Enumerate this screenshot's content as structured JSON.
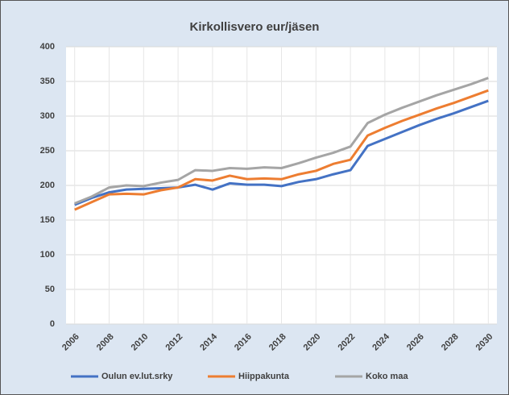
{
  "chart_data": {
    "type": "line",
    "title": "Kirkollisvero eur/jäsen",
    "x": [
      2006,
      2007,
      2008,
      2009,
      2010,
      2011,
      2012,
      2013,
      2014,
      2015,
      2016,
      2017,
      2018,
      2019,
      2020,
      2021,
      2022,
      2023,
      2024,
      2025,
      2026,
      2027,
      2028,
      2029,
      2030
    ],
    "series": [
      {
        "name": "Oulun ev.lut.srky",
        "color": "#4472c4",
        "values": [
          172,
          182,
          190,
          194,
          195,
          196,
          197,
          201,
          194,
          203,
          201,
          201,
          199,
          205,
          209,
          216,
          222,
          257,
          267,
          277,
          287,
          296,
          304,
          313,
          322
        ]
      },
      {
        "name": "Hiippakunta",
        "color": "#ed7d31",
        "values": [
          165,
          176,
          187,
          188,
          187,
          193,
          197,
          209,
          207,
          214,
          209,
          210,
          209,
          216,
          221,
          231,
          237,
          272,
          283,
          293,
          302,
          311,
          319,
          328,
          337
        ]
      },
      {
        "name": "Koko maa",
        "color": "#a5a5a5",
        "values": [
          174,
          184,
          197,
          200,
          199,
          204,
          208,
          222,
          221,
          225,
          224,
          226,
          225,
          232,
          240,
          247,
          256,
          290,
          302,
          312,
          321,
          330,
          338,
          346,
          355
        ]
      }
    ],
    "xlim": [
      2005.5,
      2030.5
    ],
    "xticks": [
      2006,
      2008,
      2010,
      2012,
      2014,
      2016,
      2018,
      2020,
      2022,
      2024,
      2026,
      2028,
      2030
    ],
    "ylim": [
      0,
      400
    ],
    "yticks": [
      0,
      50,
      100,
      150,
      200,
      250,
      300,
      350,
      400
    ],
    "grid": true,
    "legend": "bottom"
  }
}
